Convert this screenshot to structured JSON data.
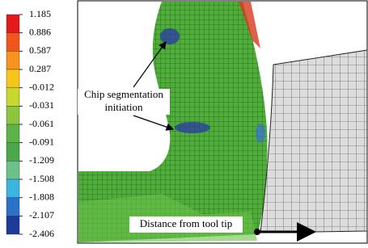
{
  "legend": {
    "labels": [
      "1.185",
      "0.886",
      "0.587",
      "0.287",
      "-0.012",
      "-0.031",
      "-0.061",
      "-0.091",
      "-1.209",
      "-1.508",
      "-1.808",
      "-2.107",
      "-2.406"
    ]
  },
  "annotations": {
    "chip_label": [
      "Chip segmentation",
      "initiation"
    ],
    "distance_label": "Distance from tool tip"
  }
}
